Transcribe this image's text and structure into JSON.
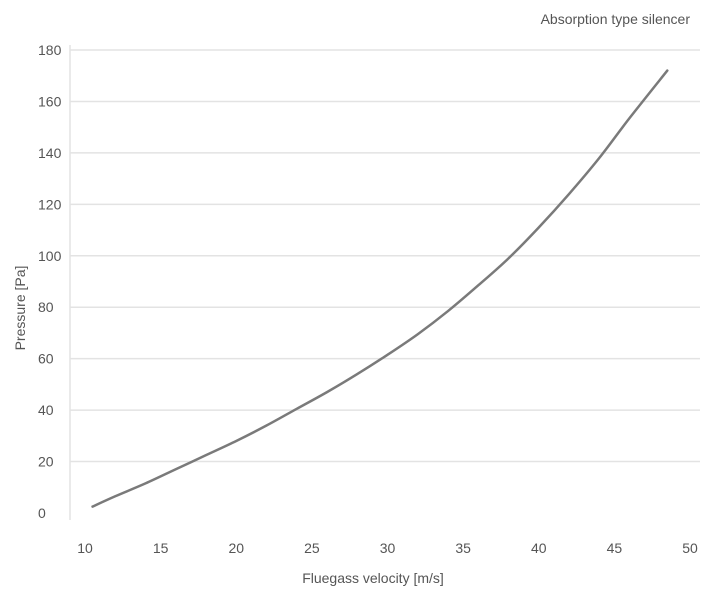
{
  "chart_data": {
    "type": "line",
    "title": "Absorption type silencer",
    "xlabel": "Fluegass velocity [m/s]",
    "ylabel": "Pressure [Pa]",
    "xlim": [
      10,
      50
    ],
    "ylim": [
      0,
      180
    ],
    "x_ticks": [
      10,
      15,
      20,
      25,
      30,
      35,
      40,
      45,
      50
    ],
    "y_ticks": [
      0,
      20,
      40,
      60,
      80,
      100,
      120,
      140,
      160,
      180
    ],
    "grid": "horizontal",
    "colors": {
      "line": "#7a7a7a",
      "grid": "#e3e3e3",
      "text": "#555555"
    },
    "series": [
      {
        "x": [
          10.5,
          12,
          14,
          16,
          18,
          20,
          22,
          24,
          26,
          28,
          30,
          32,
          34,
          36,
          38,
          40,
          42,
          44,
          46,
          48.5
        ],
        "values": [
          2.5,
          6.5,
          11.5,
          17,
          22.5,
          28,
          34,
          40.5,
          47,
          54,
          61.5,
          69.5,
          78.5,
          88.5,
          99,
          111,
          124,
          138,
          153.5,
          172
        ]
      }
    ]
  }
}
